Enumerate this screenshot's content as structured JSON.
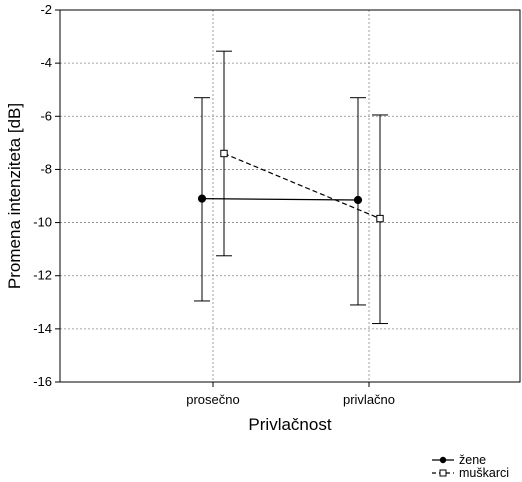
{
  "chart_data": {
    "type": "line",
    "title": "",
    "xlabel": "Privlačnost",
    "ylabel": "Promena intenziteta [dB]",
    "categories": [
      "prosečno",
      "privlačno"
    ],
    "ylim": [
      -16,
      -2
    ],
    "yticks": [
      "-2",
      "-4",
      "-6",
      "-8",
      "-10",
      "-12",
      "-14",
      "-16"
    ],
    "grid": true,
    "legend_position": "bottom-right",
    "series": [
      {
        "name": "žene",
        "marker": "filled-circle",
        "line": "solid",
        "values": [
          -9.1,
          -9.15
        ],
        "error_low": [
          -12.95,
          -13.1
        ],
        "error_high": [
          -5.3,
          -5.3
        ]
      },
      {
        "name": "muškarci",
        "marker": "open-square",
        "line": "dashed",
        "values": [
          -7.4,
          -9.85
        ],
        "error_low": [
          -11.25,
          -13.8
        ],
        "error_high": [
          -3.55,
          -5.95
        ]
      }
    ],
    "colors": {
      "data": "#000000",
      "grid": "#888888",
      "axis": "#000000"
    }
  }
}
